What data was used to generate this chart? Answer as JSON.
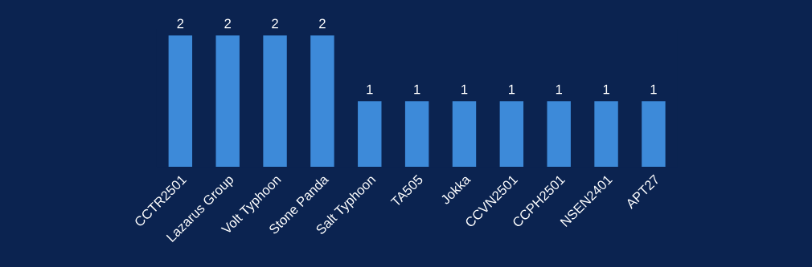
{
  "chart_data": {
    "type": "bar",
    "categories": [
      "CCTR2501",
      "Lazarus Group",
      "Volt Typhoon",
      "Stone Panda",
      "Salt Typhoon",
      "TA505",
      "Jokka",
      "CCVN2501",
      "CCPH2501",
      "NSEN2401",
      "APT27"
    ],
    "values": [
      2,
      2,
      2,
      2,
      1,
      1,
      1,
      1,
      1,
      1,
      1
    ],
    "color": "#3d8ad9",
    "data_labels": true,
    "grid": false,
    "legend": false
  }
}
